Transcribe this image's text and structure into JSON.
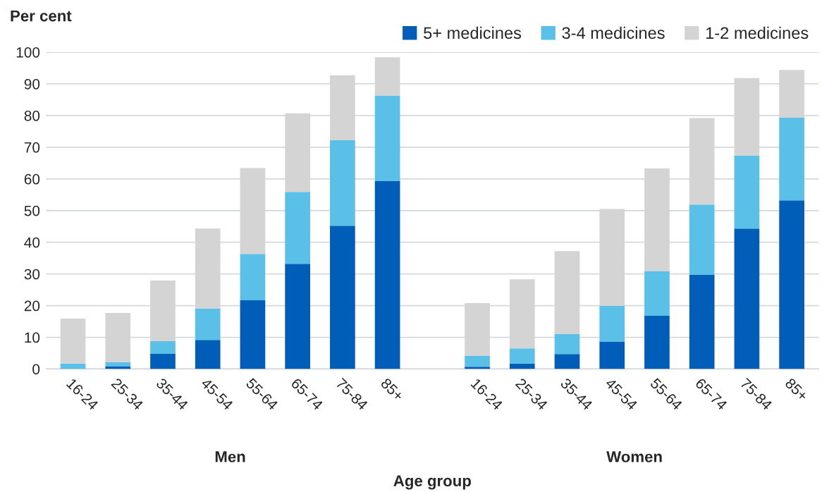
{
  "chart_data": {
    "type": "bar",
    "stacked": true,
    "ylabel": "Per cent",
    "xlabel": "Age group",
    "categories": [
      "16-24",
      "25-34",
      "35-44",
      "45-54",
      "55-64",
      "65-74",
      "75-84",
      "85+",
      null,
      "16-24",
      "25-34",
      "35-44",
      "45-54",
      "55-64",
      "65-74",
      "75-84",
      "85+"
    ],
    "series": [
      {
        "name": "5+ medicines",
        "color": "#005eb8",
        "values": [
          0,
          0.9,
          4.8,
          9.2,
          21.7,
          33.2,
          45.2,
          59.4,
          null,
          0.7,
          1.7,
          4.7,
          8.7,
          16.8,
          29.7,
          44.3,
          53.2
        ]
      },
      {
        "name": "3-4 medicines",
        "color": "#5bc0e8",
        "values": [
          1.7,
          1.2,
          4.0,
          9.8,
          14.6,
          22.7,
          27.0,
          26.9,
          null,
          3.5,
          4.8,
          6.3,
          11.2,
          14.1,
          22.2,
          23.0,
          26.1
        ]
      },
      {
        "name": "1-2 medicines",
        "color": "#d4d4d4",
        "values": [
          14.2,
          15.6,
          19.1,
          25.3,
          27.1,
          24.8,
          20.5,
          12.1,
          null,
          16.6,
          21.8,
          26.2,
          30.6,
          32.4,
          27.3,
          24.5,
          15.1
        ]
      }
    ],
    "annotations": [
      "Men",
      "Women"
    ],
    "ylim": [
      0,
      100
    ],
    "yticks": [
      0,
      10,
      20,
      30,
      40,
      50,
      60,
      70,
      80,
      90,
      100
    ],
    "grid": "y",
    "legend": "top right"
  }
}
